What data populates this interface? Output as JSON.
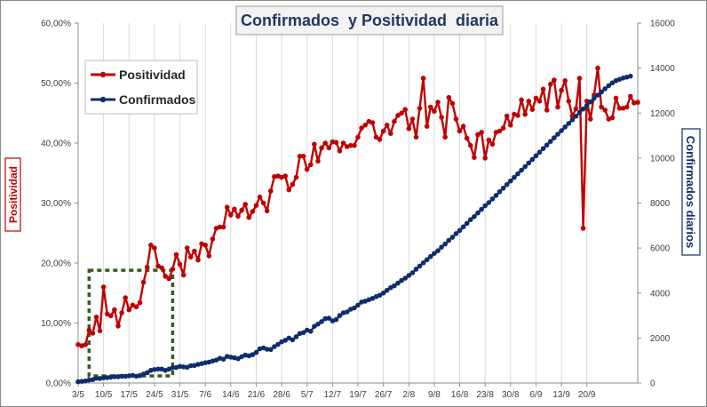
{
  "chart_data": {
    "type": "line",
    "title": "Confirmados  y Positividad  diaria",
    "ylabel_left": "Positividad",
    "ylabel_right": "Confirmados diarios",
    "x_ticks": [
      "3/5",
      "10/5",
      "17/5",
      "24/5",
      "31/5",
      "7/6",
      "14/6",
      "21/6",
      "28/6",
      "5/7",
      "12/7",
      "19/7",
      "26/7",
      "2/8",
      "9/8",
      "16/8",
      "23/8",
      "30/8",
      "6/9",
      "13/9",
      "20/9"
    ],
    "y_left_ticks": [
      "0,00%",
      "10,00%",
      "20,00%",
      "30,00%",
      "40,00%",
      "50,00%",
      "60,00%"
    ],
    "y_right_ticks": [
      "0",
      "2000",
      "4000",
      "6000",
      "8000",
      "10000",
      "12000",
      "14000",
      "16000"
    ],
    "y_left_range": [
      0,
      0.6
    ],
    "y_right_range": [
      0,
      16000
    ],
    "grid": "vertical",
    "legend_position": "top-left",
    "highlight_box": {
      "from": "6/5",
      "to": "29/5",
      "style": "dashed",
      "color": "#3a5a1e"
    },
    "series": [
      {
        "name": "Positividad",
        "axis": "left",
        "color": "#c00000",
        "start_date": "3/5",
        "values": [
          0.064,
          0.062,
          0.064,
          0.088,
          0.083,
          0.11,
          0.087,
          0.16,
          0.115,
          0.112,
          0.122,
          0.095,
          0.117,
          0.142,
          0.122,
          0.13,
          0.127,
          0.134,
          0.168,
          0.193,
          0.23,
          0.225,
          0.195,
          0.192,
          0.178,
          0.174,
          0.19,
          0.214,
          0.198,
          0.18,
          0.225,
          0.21,
          0.22,
          0.205,
          0.232,
          0.23,
          0.212,
          0.24,
          0.258,
          0.26,
          0.26,
          0.293,
          0.28,
          0.29,
          0.278,
          0.288,
          0.298,
          0.276,
          0.286,
          0.296,
          0.31,
          0.3,
          0.287,
          0.32,
          0.344,
          0.345,
          0.343,
          0.345,
          0.322,
          0.331,
          0.343,
          0.378,
          0.378,
          0.356,
          0.364,
          0.398,
          0.37,
          0.392,
          0.4,
          0.392,
          0.402,
          0.401,
          0.387,
          0.4,
          0.394,
          0.396,
          0.396,
          0.41,
          0.425,
          0.43,
          0.436,
          0.434,
          0.41,
          0.406,
          0.42,
          0.43,
          0.416,
          0.436,
          0.446,
          0.45,
          0.456,
          0.424,
          0.44,
          0.41,
          0.458,
          0.508,
          0.428,
          0.46,
          0.453,
          0.468,
          0.443,
          0.41,
          0.476,
          0.466,
          0.44,
          0.42,
          0.428,
          0.408,
          0.396,
          0.376,
          0.414,
          0.418,
          0.375,
          0.405,
          0.398,
          0.418,
          0.42,
          0.425,
          0.445,
          0.43,
          0.448,
          0.446,
          0.472,
          0.448,
          0.47,
          0.456,
          0.475,
          0.47,
          0.49,
          0.455,
          0.498,
          0.505,
          0.46,
          0.488,
          0.504,
          0.47,
          0.445,
          0.457,
          0.508,
          0.258,
          0.47,
          0.44,
          0.48,
          0.525,
          0.46,
          0.455,
          0.44,
          0.442,
          0.475,
          0.458,
          0.458,
          0.46,
          0.478,
          0.467,
          0.468
        ]
      },
      {
        "name": "Confirmados",
        "axis": "right",
        "color": "#0d2d6c",
        "start_date": "3/5",
        "values": [
          60,
          70,
          90,
          130,
          150,
          210,
          200,
          230,
          240,
          260,
          280,
          280,
          300,
          300,
          320,
          340,
          300,
          330,
          400,
          460,
          560,
          600,
          620,
          620,
          560,
          620,
          680,
          690,
          740,
          720,
          700,
          770,
          780,
          830,
          860,
          900,
          930,
          980,
          1020,
          1100,
          1060,
          1180,
          1150,
          1120,
          1080,
          1170,
          1240,
          1210,
          1260,
          1360,
          1520,
          1560,
          1500,
          1490,
          1620,
          1720,
          1830,
          1900,
          2000,
          1920,
          2060,
          2200,
          2240,
          2350,
          2300,
          2520,
          2620,
          2730,
          2860,
          2880,
          2760,
          2820,
          3000,
          3120,
          3160,
          3280,
          3340,
          3460,
          3600,
          3640,
          3700,
          3760,
          3840,
          3900,
          4000,
          4120,
          4240,
          4320,
          4440,
          4560,
          4660,
          4780,
          4900,
          5060,
          5200,
          5340,
          5480,
          5620,
          5760,
          5880,
          6040,
          6180,
          6340,
          6480,
          6640,
          6780,
          6940,
          7100,
          7260,
          7400,
          7560,
          7720,
          7880,
          8020,
          8180,
          8340,
          8500,
          8660,
          8820,
          8980,
          9140,
          9300,
          9460,
          9620,
          9780,
          9940,
          10100,
          10260,
          10420,
          10580,
          10740,
          10900,
          11060,
          11220,
          11380,
          11540,
          11700,
          11860,
          12020,
          12180,
          12340,
          12500,
          12660,
          12800,
          12940,
          13080,
          13220,
          13340,
          13440,
          13500,
          13560,
          13600,
          13640
        ]
      }
    ]
  }
}
